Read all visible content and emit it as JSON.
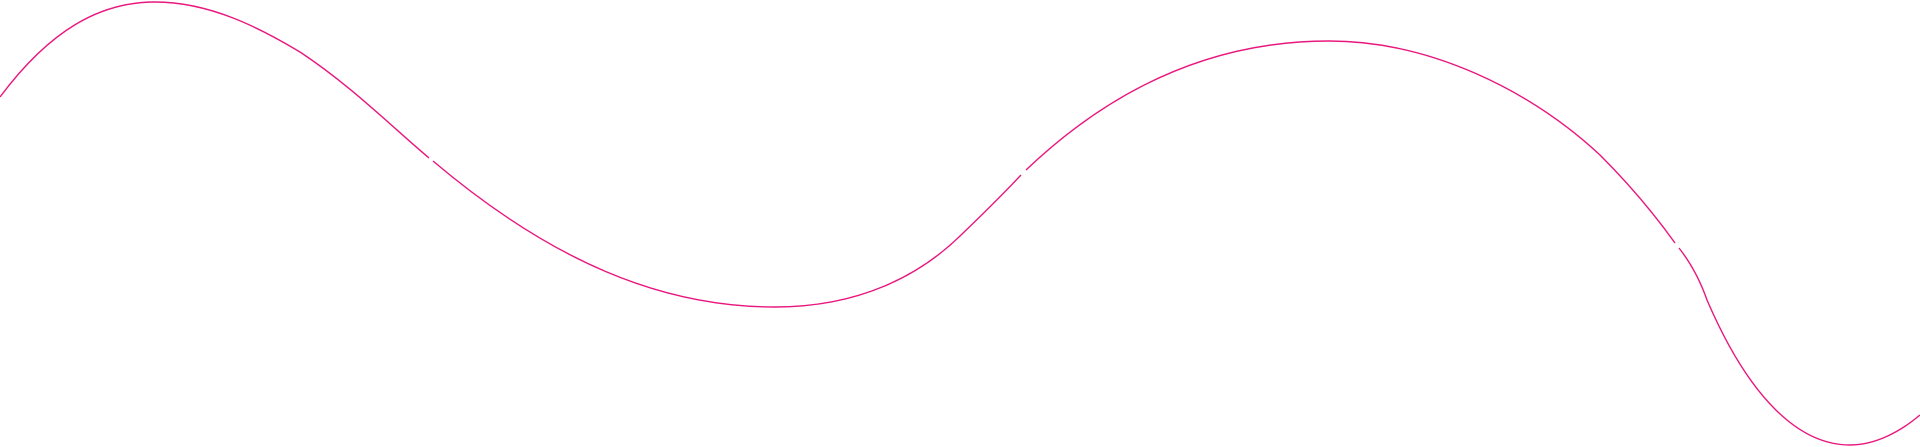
{
  "decoration": {
    "line_color": "#e8177e",
    "background_color": "#ffffff"
  }
}
